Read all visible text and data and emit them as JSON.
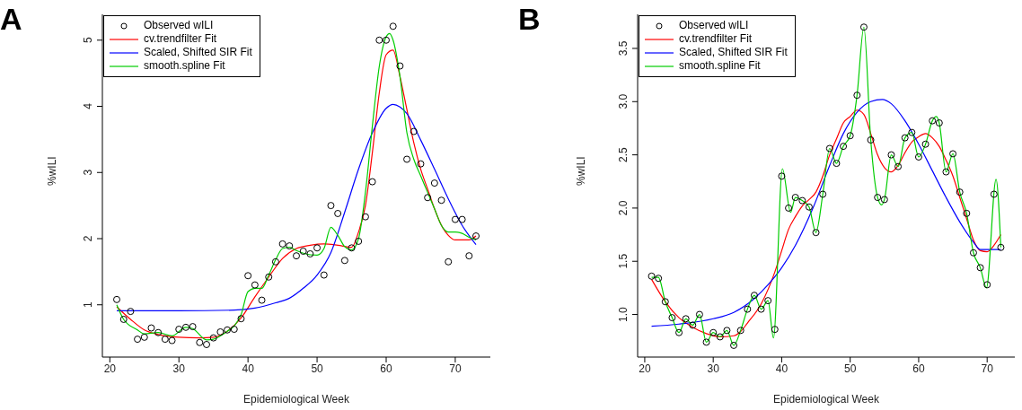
{
  "chart_data": [
    {
      "type": "line",
      "title": "A",
      "xlabel": "Epidemiological Week",
      "ylabel": "%wILI",
      "xlim": [
        18.92,
        75.08
      ],
      "ylim": [
        0.21,
        5.39
      ],
      "xticks": [
        20,
        30,
        40,
        50,
        60,
        70
      ],
      "yticks": [
        1,
        2,
        3,
        4,
        5
      ],
      "grid": false,
      "legend": "top left",
      "series": [
        {
          "name": "Observed wILI",
          "type": "scatter",
          "marker": "circle",
          "color": "#000000",
          "x": [
            21,
            22,
            23,
            24,
            25,
            26,
            27,
            28,
            29,
            30,
            31,
            32,
            33,
            34,
            35,
            36,
            37,
            38,
            39,
            40,
            41,
            42,
            43,
            44,
            45,
            46,
            47,
            48,
            49,
            50,
            51,
            52,
            53,
            54,
            55,
            56,
            57,
            58,
            59,
            60,
            61,
            62,
            63,
            64,
            65,
            66,
            67,
            68,
            69,
            70,
            71,
            72,
            73
          ],
          "values": [
            1.08,
            0.78,
            0.9,
            0.48,
            0.51,
            0.65,
            0.58,
            0.48,
            0.46,
            0.63,
            0.66,
            0.67,
            0.43,
            0.4,
            0.5,
            0.59,
            0.62,
            0.63,
            0.79,
            1.44,
            1.3,
            1.07,
            1.42,
            1.65,
            1.92,
            1.89,
            1.74,
            1.81,
            1.77,
            1.86,
            1.45,
            2.5,
            2.38,
            1.67,
            1.86,
            1.96,
            2.33,
            2.86,
            5.0,
            5.0,
            5.21,
            4.61,
            3.2,
            3.62,
            3.13,
            2.62,
            2.84,
            2.58,
            1.65,
            2.29,
            2.29,
            1.74,
            2.04
          ]
        },
        {
          "name": "cv.trendfilter Fit",
          "type": "line",
          "color": "#ff0000",
          "x": [
            21,
            23,
            25,
            27,
            30,
            33,
            35,
            37,
            39,
            41,
            43,
            45,
            47,
            49,
            51,
            53,
            55,
            56,
            57,
            58,
            59,
            60,
            61,
            62,
            63,
            64,
            65,
            66,
            67,
            68,
            69,
            70,
            71,
            72,
            73
          ],
          "values": [
            0.97,
            0.78,
            0.62,
            0.55,
            0.51,
            0.5,
            0.51,
            0.6,
            0.8,
            1.12,
            1.42,
            1.7,
            1.85,
            1.9,
            1.92,
            1.9,
            1.87,
            2.1,
            2.5,
            3.3,
            4.2,
            4.78,
            4.85,
            4.45,
            3.95,
            3.45,
            3.05,
            2.75,
            2.45,
            2.2,
            2.05,
            1.98,
            1.98,
            1.98,
            2.04
          ]
        },
        {
          "name": "Scaled, Shifted SIR Fit",
          "type": "line",
          "color": "#0000ff",
          "x": [
            21,
            30,
            38,
            41,
            44,
            46,
            48,
            50,
            52,
            54,
            56,
            58,
            60,
            61,
            62,
            63,
            65,
            67,
            69,
            71,
            73
          ],
          "values": [
            0.91,
            0.91,
            0.92,
            0.95,
            1.03,
            1.1,
            1.25,
            1.45,
            1.79,
            2.4,
            3.05,
            3.6,
            3.97,
            4.03,
            3.99,
            3.89,
            3.49,
            3.05,
            2.6,
            2.2,
            1.91
          ]
        },
        {
          "name": "smooth.spline Fit",
          "type": "line",
          "color": "#00cd00",
          "x": [
            21,
            22,
            24,
            25,
            27,
            29,
            31,
            32,
            34,
            35,
            37,
            38,
            39,
            40,
            41,
            42,
            43,
            44,
            45,
            46,
            47,
            48,
            50,
            51,
            52,
            53,
            54,
            55,
            56,
            57,
            58,
            59,
            60,
            60.5,
            61,
            62,
            63,
            64,
            65,
            66,
            67,
            68,
            69,
            70,
            71,
            72,
            73
          ],
          "values": [
            1.0,
            0.78,
            0.62,
            0.56,
            0.58,
            0.53,
            0.66,
            0.64,
            0.47,
            0.48,
            0.6,
            0.68,
            0.85,
            1.2,
            1.25,
            1.25,
            1.45,
            1.68,
            1.85,
            1.87,
            1.82,
            1.78,
            1.75,
            1.85,
            2.17,
            2.05,
            1.88,
            1.83,
            2.0,
            2.7,
            3.7,
            4.6,
            5.05,
            5.1,
            5.0,
            4.45,
            3.6,
            3.2,
            2.95,
            2.7,
            2.45,
            2.2,
            2.1,
            2.1,
            2.08,
            2.02,
            1.98
          ]
        }
      ]
    },
    {
      "type": "line",
      "title": "B",
      "xlabel": "Epidemiological Week",
      "ylabel": "%wILI",
      "xlim": [
        18.96,
        74.04
      ],
      "ylim": [
        0.6,
        3.82
      ],
      "xticks": [
        20,
        30,
        40,
        50,
        60,
        70
      ],
      "yticks": [
        {
          "value": 1,
          "label": "1.0"
        },
        1.5,
        {
          "value": 2,
          "label": "2.0"
        },
        2.5,
        {
          "value": 3,
          "label": "3.0"
        },
        3.5
      ],
      "grid": false,
      "legend": "top left",
      "series": [
        {
          "name": "Observed wILI",
          "type": "scatter",
          "marker": "circle",
          "color": "#000000",
          "x": [
            21,
            22,
            23,
            24,
            25,
            26,
            27,
            28,
            29,
            30,
            31,
            32,
            33,
            34,
            35,
            36,
            37,
            38,
            39,
            40,
            41,
            42,
            43,
            44,
            45,
            46,
            47,
            48,
            49,
            50,
            51,
            52,
            53,
            54,
            55,
            56,
            57,
            58,
            59,
            60,
            61,
            62,
            63,
            64,
            65,
            66,
            67,
            68,
            69,
            70,
            71,
            72
          ],
          "values": [
            1.36,
            1.34,
            1.12,
            0.97,
            0.83,
            0.96,
            0.9,
            1.0,
            0.74,
            0.83,
            0.79,
            0.85,
            0.71,
            0.85,
            1.05,
            1.18,
            1.05,
            1.13,
            0.86,
            2.3,
            2.0,
            2.1,
            2.07,
            2.01,
            1.77,
            2.13,
            2.56,
            2.42,
            2.58,
            2.68,
            3.06,
            3.7,
            2.64,
            2.1,
            2.08,
            2.5,
            2.39,
            2.66,
            2.71,
            2.48,
            2.6,
            2.82,
            2.8,
            2.34,
            2.51,
            2.15,
            1.95,
            1.58,
            1.44,
            1.28,
            2.13,
            1.63
          ]
        },
        {
          "name": "cv.trendfilter Fit",
          "type": "line",
          "color": "#ff0000",
          "x": [
            21,
            23,
            25,
            27,
            29,
            31,
            33,
            34,
            35,
            37,
            39,
            40,
            41,
            42,
            43,
            44,
            45,
            46,
            47,
            48,
            49,
            50,
            51,
            52,
            53,
            54,
            55,
            56,
            57,
            58,
            59,
            60,
            61,
            62,
            63,
            64,
            65,
            66,
            67,
            68,
            69,
            70,
            71,
            72
          ],
          "values": [
            1.33,
            1.12,
            0.97,
            0.88,
            0.82,
            0.79,
            0.8,
            0.84,
            0.92,
            1.1,
            1.4,
            1.6,
            1.8,
            1.92,
            2.02,
            2.08,
            2.15,
            2.3,
            2.5,
            2.65,
            2.8,
            2.86,
            2.92,
            2.88,
            2.7,
            2.5,
            2.38,
            2.34,
            2.4,
            2.52,
            2.62,
            2.67,
            2.7,
            2.66,
            2.58,
            2.45,
            2.3,
            2.1,
            1.9,
            1.7,
            1.6,
            1.59,
            1.65,
            1.75
          ]
        },
        {
          "name": "Scaled, Shifted SIR Fit",
          "type": "line",
          "color": "#0000ff",
          "x": [
            21,
            25,
            30,
            33,
            36,
            38,
            40,
            42,
            44.5,
            47,
            49,
            51,
            53,
            54.7,
            56,
            58,
            60,
            62,
            64,
            66,
            68,
            69,
            72
          ],
          "values": [
            0.89,
            0.91,
            0.96,
            1.02,
            1.15,
            1.28,
            1.44,
            1.65,
            1.99,
            2.4,
            2.7,
            2.9,
            3.0,
            3.02,
            2.98,
            2.82,
            2.6,
            2.35,
            2.1,
            1.87,
            1.68,
            1.61,
            1.61
          ]
        },
        {
          "name": "smooth.spline Fit",
          "type": "line",
          "color": "#00cd00",
          "x": [
            21,
            22,
            23,
            24,
            25,
            26,
            27,
            28,
            29,
            30,
            31,
            32,
            33,
            34,
            35,
            36,
            37,
            38,
            38.8,
            40.1,
            41.3,
            42,
            43,
            44,
            45,
            46,
            47,
            48,
            49,
            50,
            51,
            52,
            53,
            54,
            54.6,
            55,
            56,
            57,
            58,
            59,
            60,
            61,
            62,
            62.6,
            63,
            64,
            65,
            66,
            67,
            68,
            69,
            69.9,
            71.3,
            72
          ],
          "values": [
            1.35,
            1.35,
            1.12,
            0.97,
            0.83,
            0.96,
            0.9,
            1.0,
            0.74,
            0.83,
            0.79,
            0.85,
            0.71,
            0.85,
            1.05,
            1.18,
            1.05,
            1.13,
            0.78,
            2.37,
            1.96,
            2.1,
            2.07,
            2.01,
            1.77,
            2.13,
            2.56,
            2.42,
            2.58,
            2.68,
            3.06,
            3.7,
            2.64,
            2.1,
            2.03,
            2.08,
            2.5,
            2.39,
            2.66,
            2.71,
            2.48,
            2.6,
            2.82,
            2.86,
            2.8,
            2.34,
            2.51,
            2.15,
            1.95,
            1.58,
            1.44,
            1.25,
            2.27,
            1.63
          ]
        }
      ]
    }
  ]
}
